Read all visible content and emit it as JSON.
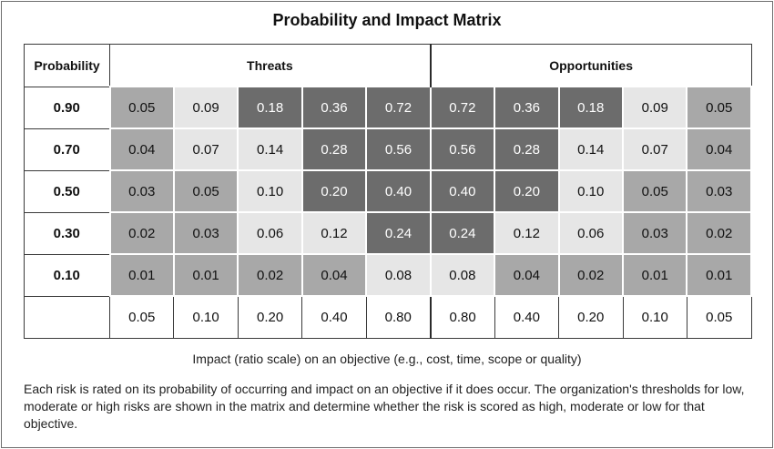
{
  "title": "Probability and Impact Matrix",
  "headers": {
    "probability": "Probability",
    "threats": "Threats",
    "opportunities": "Opportunities"
  },
  "caption": "Impact (ratio scale) on an objective  (e.g., cost, time, scope or quality)",
  "note": "Each risk is rated on its probability of occurring and impact on an objective if it does occur. The organization's thresholds for low, moderate or high risks are shown in the matrix and determine whether the risk is scored as high, moderate or low for that objective.",
  "colors": {
    "low": "#e6e6e6",
    "moderate": "#a8a8a8",
    "high": "#6c6c6c"
  },
  "chart_data": {
    "type": "heatmap",
    "title": "Probability and Impact Matrix",
    "xlabel": "Impact (ratio scale) on an objective  (e.g., cost, time, scope or quality)",
    "ylabel": "Probability",
    "groups": [
      "Threats",
      "Opportunities"
    ],
    "impacts": [
      "0.05",
      "0.10",
      "0.20",
      "0.40",
      "0.80",
      "0.80",
      "0.40",
      "0.20",
      "0.10",
      "0.05"
    ],
    "rows": [
      {
        "probability": "0.90",
        "values": [
          "0.05",
          "0.09",
          "0.18",
          "0.36",
          "0.72",
          "0.72",
          "0.36",
          "0.18",
          "0.09",
          "0.05"
        ],
        "levels": [
          "moderate",
          "low",
          "high",
          "high",
          "high",
          "high",
          "high",
          "high",
          "low",
          "moderate"
        ]
      },
      {
        "probability": "0.70",
        "values": [
          "0.04",
          "0.07",
          "0.14",
          "0.28",
          "0.56",
          "0.56",
          "0.28",
          "0.14",
          "0.07",
          "0.04"
        ],
        "levels": [
          "moderate",
          "low",
          "low",
          "high",
          "high",
          "high",
          "high",
          "low",
          "low",
          "moderate"
        ]
      },
      {
        "probability": "0.50",
        "values": [
          "0.03",
          "0.05",
          "0.10",
          "0.20",
          "0.40",
          "0.40",
          "0.20",
          "0.10",
          "0.05",
          "0.03"
        ],
        "levels": [
          "moderate",
          "moderate",
          "low",
          "high",
          "high",
          "high",
          "high",
          "low",
          "moderate",
          "moderate"
        ]
      },
      {
        "probability": "0.30",
        "values": [
          "0.02",
          "0.03",
          "0.06",
          "0.12",
          "0.24",
          "0.24",
          "0.12",
          "0.06",
          "0.03",
          "0.02"
        ],
        "levels": [
          "moderate",
          "moderate",
          "low",
          "low",
          "high",
          "high",
          "low",
          "low",
          "moderate",
          "moderate"
        ]
      },
      {
        "probability": "0.10",
        "values": [
          "0.01",
          "0.01",
          "0.02",
          "0.04",
          "0.08",
          "0.08",
          "0.04",
          "0.02",
          "0.01",
          "0.01"
        ],
        "levels": [
          "moderate",
          "moderate",
          "moderate",
          "moderate",
          "low",
          "low",
          "moderate",
          "moderate",
          "moderate",
          "moderate"
        ]
      }
    ]
  }
}
